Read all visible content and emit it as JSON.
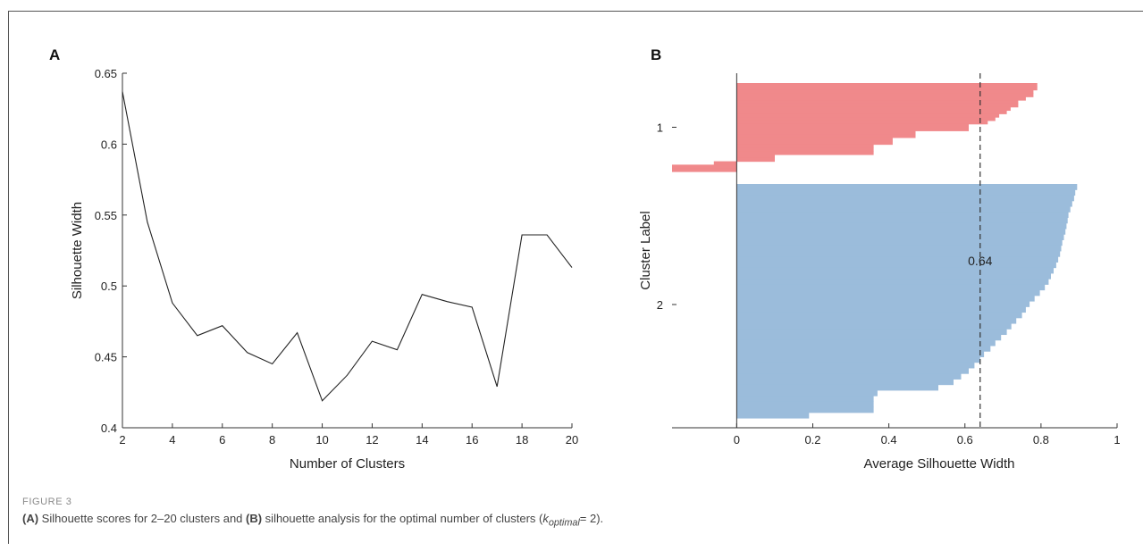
{
  "figure": {
    "label": "FIGURE 3",
    "caption": {
      "part_a_label": "(A)",
      "text_1": " Silhouette scores for 2–20 clusters and ",
      "part_b_label": "(B)",
      "text_2": " silhouette analysis for the optimal number of clusters (",
      "k_symbol": "k",
      "k_subscript": "optimal",
      "text_3": "= 2)."
    }
  },
  "chart_data": [
    {
      "panel": "A",
      "type": "line",
      "xlabel": "Number of Clusters",
      "ylabel": "Silhouette Width",
      "xlim": [
        2,
        20
      ],
      "ylim": [
        0.4,
        0.65
      ],
      "xticks": [
        "2",
        "4",
        "6",
        "8",
        "10",
        "12",
        "14",
        "16",
        "18",
        "20"
      ],
      "yticks": [
        "0.4",
        "0.45",
        "0.5",
        "0.55",
        "0.6",
        "0.65"
      ],
      "grid": false,
      "series": [
        {
          "color": "#222222",
          "x": [
            2,
            3,
            4,
            5,
            6,
            7,
            8,
            9,
            10,
            11,
            12,
            13,
            14,
            15,
            16,
            17,
            18,
            19,
            20
          ],
          "y": [
            0.637,
            0.545,
            0.488,
            0.465,
            0.472,
            0.453,
            0.445,
            0.467,
            0.419,
            0.437,
            0.461,
            0.455,
            0.494,
            0.489,
            0.485,
            0.429,
            0.536,
            0.536,
            0.513
          ]
        }
      ]
    },
    {
      "panel": "B",
      "type": "bar",
      "orientation": "horizontal",
      "xlabel": "Average Silhouette Width",
      "ylabel": "Cluster Label",
      "xlim": [
        -0.17,
        1
      ],
      "xticks": [
        "0",
        "0.2",
        "0.4",
        "0.6",
        "0.8",
        "1"
      ],
      "yticks": [
        "1",
        "2"
      ],
      "average_line": 0.64,
      "average_label": "0.64",
      "clusters": [
        {
          "label": "1",
          "color": "#f0898b",
          "values": [
            0.79,
            0.79,
            0.78,
            0.78,
            0.76,
            0.74,
            0.74,
            0.72,
            0.71,
            0.69,
            0.68,
            0.66,
            0.61,
            0.61,
            0.47,
            0.47,
            0.41,
            0.41,
            0.36,
            0.36,
            0.36,
            0.1,
            0.1,
            -0.06,
            -0.17,
            -0.17
          ]
        },
        {
          "label": "2",
          "color": "#9bbcdb",
          "values": [
            0.895,
            0.89,
            0.887,
            0.882,
            0.877,
            0.872,
            0.87,
            0.867,
            0.864,
            0.86,
            0.856,
            0.853,
            0.85,
            0.845,
            0.84,
            0.833,
            0.826,
            0.82,
            0.81,
            0.797,
            0.783,
            0.77,
            0.76,
            0.75,
            0.735,
            0.722,
            0.71,
            0.695,
            0.68,
            0.667,
            0.65,
            0.64,
            0.625,
            0.61,
            0.59,
            0.57,
            0.53,
            0.37,
            0.36,
            0.36,
            0.36,
            0.19
          ]
        }
      ]
    }
  ]
}
